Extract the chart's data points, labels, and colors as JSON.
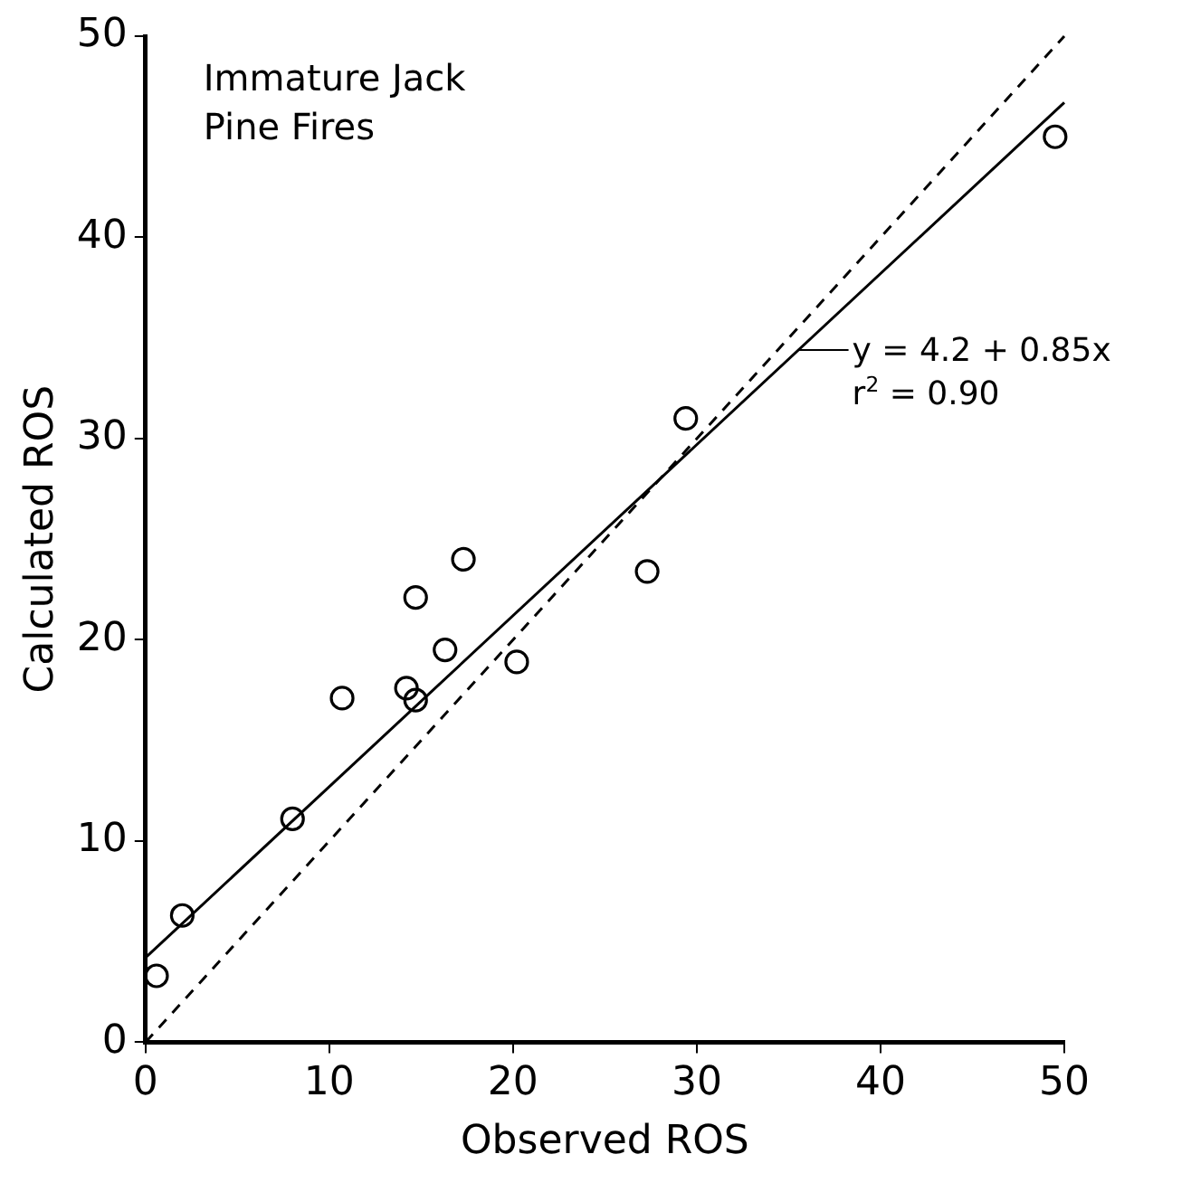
{
  "chart_data": {
    "type": "scatter",
    "title": "Immature Jack Pine Fires",
    "xlabel": "Observed ROS",
    "ylabel": "Calculated ROS",
    "xlim": [
      0,
      50
    ],
    "ylim": [
      0,
      50
    ],
    "xticks": [
      0,
      10,
      20,
      30,
      40,
      50
    ],
    "yticks": [
      0,
      10,
      20,
      30,
      40,
      50
    ],
    "grid": false,
    "legend": false,
    "series": [
      {
        "type": "scatter",
        "color": "#000000",
        "marker": "circle",
        "x": [
          0.6,
          2.0,
          8.0,
          10.7,
          14.2,
          14.7,
          14.7,
          16.3,
          17.3,
          20.2,
          27.3,
          29.4,
          49.5
        ],
        "values": [
          3.3,
          6.3,
          11.1,
          17.1,
          17.6,
          17.0,
          22.1,
          19.5,
          24.0,
          18.9,
          23.4,
          31.0,
          45.0
        ]
      },
      {
        "type": "line",
        "color": "#000000",
        "marker": "none",
        "line_style": "solid",
        "x": [
          0,
          50
        ],
        "values": [
          4.2,
          46.7
        ]
      },
      {
        "type": "line",
        "color": "#000000",
        "marker": "none",
        "line_style": "dashed",
        "x": [
          0,
          50
        ],
        "values": [
          0,
          50
        ]
      }
    ],
    "annotations": [
      {
        "text": "y = 4.2 + 0.85x",
        "x": 35.5,
        "y": 34.4
      },
      "r$^{2}$ = 0.90"
    ]
  }
}
